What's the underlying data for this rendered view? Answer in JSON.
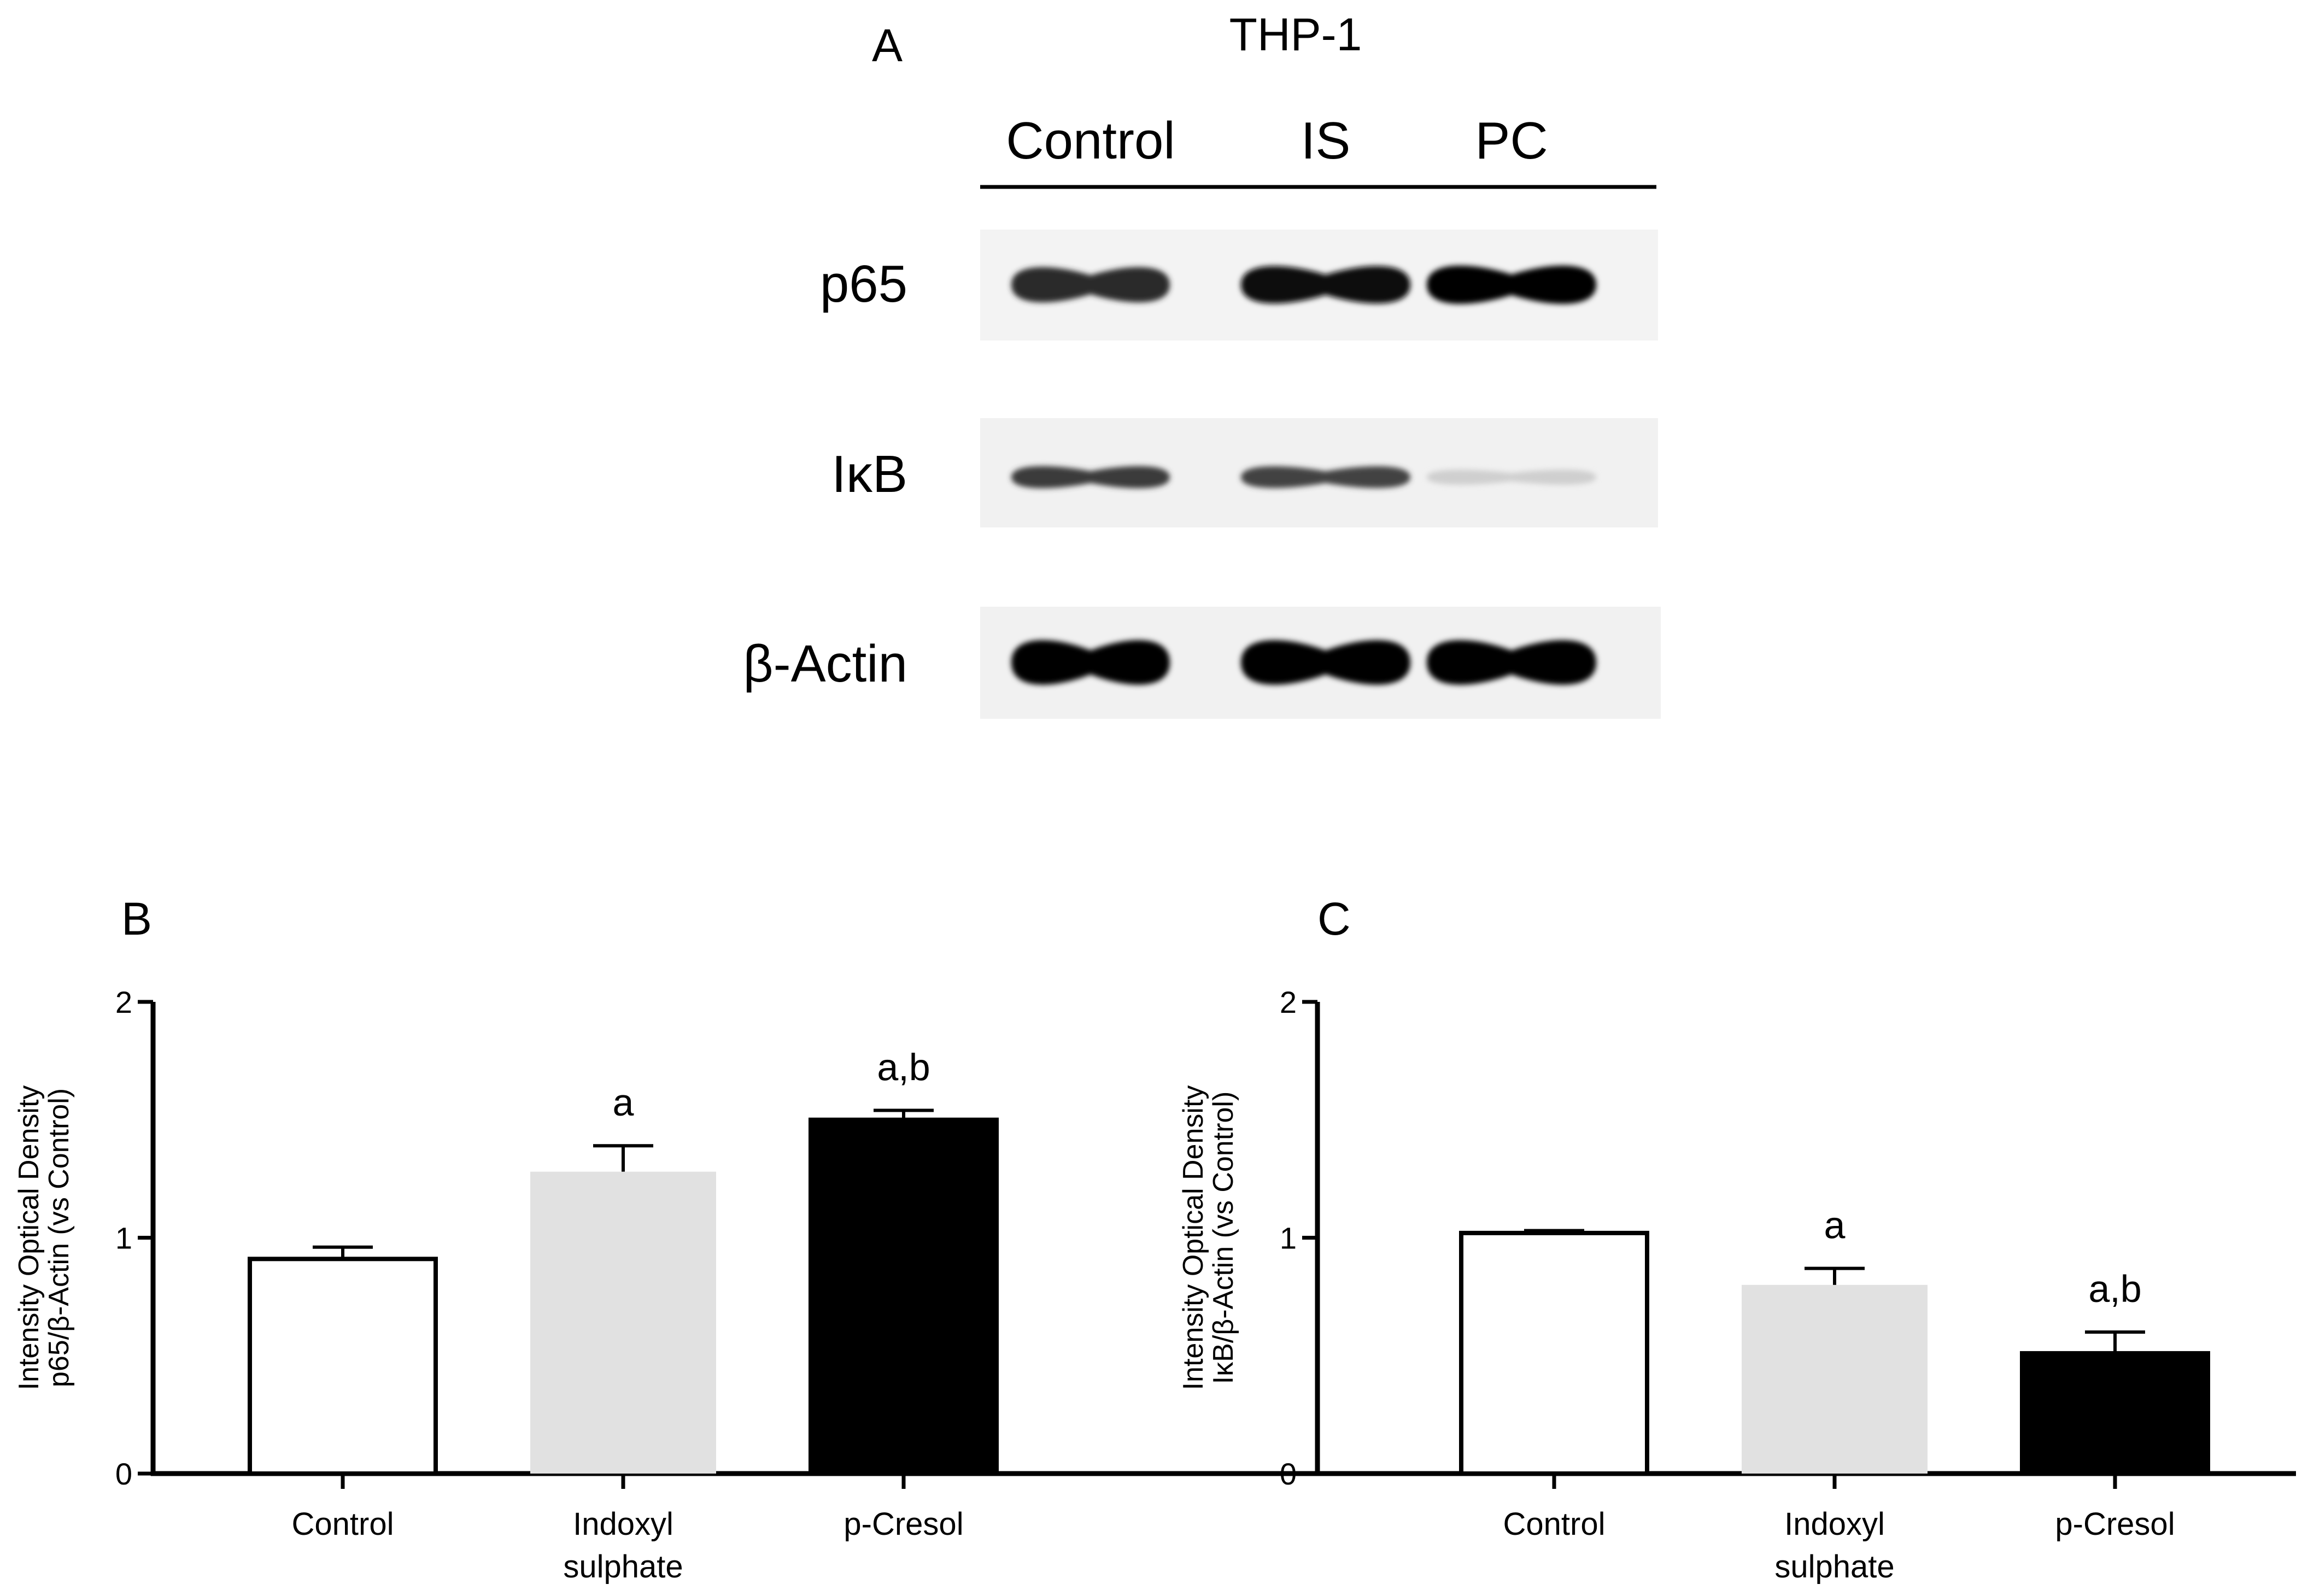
{
  "panel_a": {
    "letter": "A",
    "title": "THP-1",
    "lanes": [
      "Control",
      "IS",
      "PC"
    ],
    "blots": [
      {
        "label": "p65",
        "intensity": [
          0.82,
          0.95,
          1.0
        ]
      },
      {
        "label": "IκB",
        "intensity": [
          0.75,
          0.72,
          0.12
        ]
      },
      {
        "label": "β-Actin",
        "intensity": [
          1.0,
          1.0,
          1.0
        ]
      }
    ]
  },
  "chart_data": [
    {
      "panel": "B",
      "type": "bar",
      "title": "",
      "categories": [
        "Control",
        "Indoxyl sulphate",
        "p-Cresol"
      ],
      "values": [
        0.91,
        1.28,
        1.5
      ],
      "errors": [
        0.05,
        0.11,
        0.04
      ],
      "annotations": [
        "",
        "a",
        "a,b"
      ],
      "fill_colors": [
        "#ffffff",
        "#e1e1e1",
        "#000000"
      ],
      "ylabel": [
        "Intensity Optical Density",
        "p65/β-Actin (vs Control)"
      ],
      "xlabel": "",
      "ylim": [
        0,
        2
      ],
      "yticks": [
        "0",
        "1",
        "2"
      ],
      "grid": false
    },
    {
      "panel": "C",
      "type": "bar",
      "title": "",
      "categories": [
        "Control",
        "Indoxyl sulphate",
        "p-Cresol"
      ],
      "values": [
        1.02,
        0.8,
        0.51
      ],
      "errors": [
        0.01,
        0.07,
        0.09
      ],
      "annotations": [
        "",
        "a",
        "a,b"
      ],
      "fill_colors": [
        "#ffffff",
        "#e1e1e1",
        "#000000"
      ],
      "ylabel": [
        "Intensity Optical Density",
        "IκB/β-Actin (vs Control)"
      ],
      "xlabel": "",
      "ylim": [
        0,
        2
      ],
      "yticks": [
        "0",
        "1",
        "2"
      ],
      "grid": false
    }
  ]
}
